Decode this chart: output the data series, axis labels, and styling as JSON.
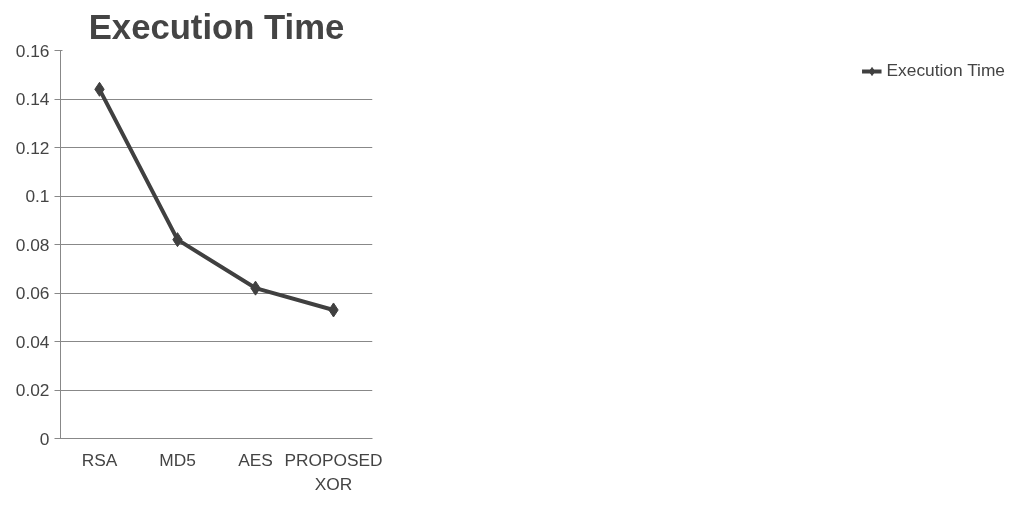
{
  "chart_data": {
    "type": "line",
    "title": "Execution Time",
    "categories": [
      "RSA",
      "MD5",
      "AES",
      "PROPOSED XOR"
    ],
    "series": [
      {
        "name": "Execution Time",
        "color": "#404040",
        "values": [
          0.144,
          0.082,
          0.062,
          0.053
        ]
      }
    ],
    "ylim": [
      0,
      0.16
    ],
    "yticks": [
      0,
      0.02,
      0.04,
      0.06,
      0.08,
      0.1,
      0.12,
      0.14,
      0.16
    ],
    "grid": "y",
    "legend": "right",
    "marker": "diamond",
    "line_style": "solid"
  }
}
